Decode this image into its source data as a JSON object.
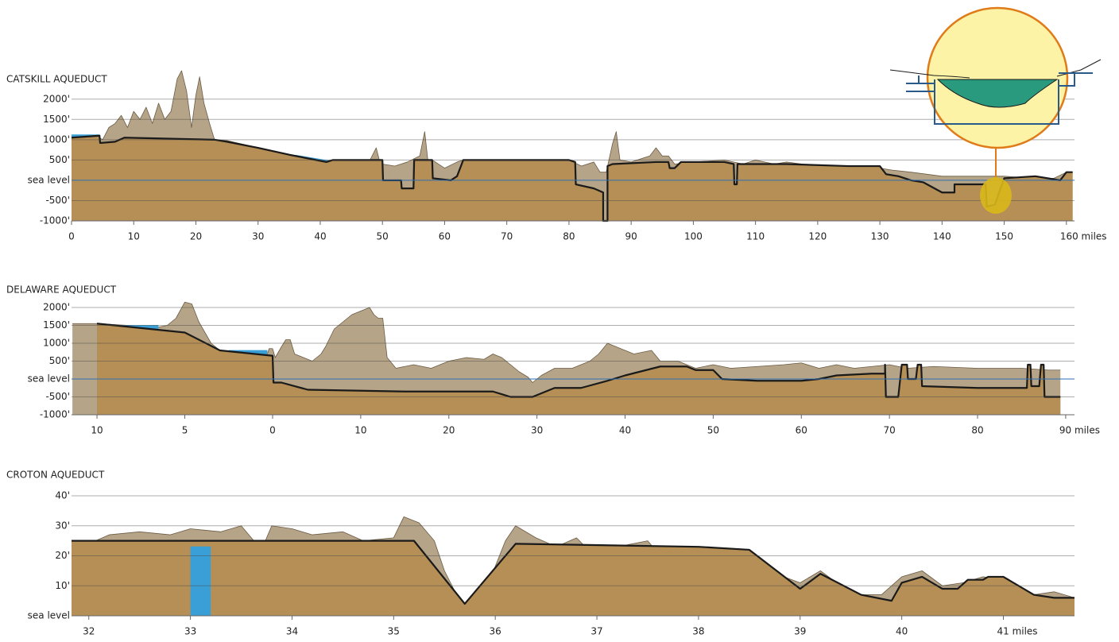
{
  "chart_data": [
    {
      "type": "area",
      "title": "CATSKILL AQUEDUCT",
      "xlim": [
        0,
        161.3
      ],
      "ylim": [
        -1000,
        2700
      ],
      "yticks": [
        {
          "value": 2000,
          "label": "2000'"
        },
        {
          "value": 1500,
          "label": "1500'"
        },
        {
          "value": 1000,
          "label": "1000'"
        },
        {
          "value": 500,
          "label": "500'"
        },
        {
          "value": 0,
          "label": "sea level"
        },
        {
          "value": -500,
          "label": "-500'"
        },
        {
          "value": -1000,
          "label": "-1000'"
        }
      ],
      "xticks": [
        0,
        10,
        20,
        30,
        40,
        50,
        60,
        70,
        80,
        90,
        100,
        110,
        120,
        130,
        140,
        150,
        {
          "value": 160,
          "label": "160 miles"
        }
      ],
      "grid": true,
      "series": [
        {
          "color": "#6b5b45",
          "fill": "#b5a487",
          "x": [
            0,
            4,
            5,
            6,
            7,
            8,
            9,
            10,
            11,
            12,
            13,
            14,
            15,
            16,
            17,
            17.7,
            18.5,
            19.3,
            20,
            20.6,
            21.3,
            22.2,
            23,
            25,
            30,
            35,
            40,
            42,
            45,
            48,
            49,
            49.5,
            50,
            52,
            54,
            56,
            56.8,
            57.3,
            58,
            60,
            62,
            63,
            70,
            78,
            80,
            82,
            84,
            85,
            86,
            87,
            87.6,
            88.2,
            90,
            93,
            94,
            95,
            96,
            97,
            100,
            105,
            108,
            110,
            113,
            115,
            120,
            125,
            130,
            132,
            135,
            140,
            145,
            150,
            155,
            158,
            160,
            161
          ],
          "values": [
            1050,
            1100,
            1000,
            1300,
            1400,
            1600,
            1300,
            1700,
            1500,
            1800,
            1400,
            1900,
            1500,
            1700,
            2500,
            2700,
            2200,
            1300,
            2100,
            2550,
            1900,
            1400,
            1000,
            980,
            800,
            600,
            450,
            500,
            500,
            500,
            800,
            500,
            400,
            350,
            450,
            600,
            1200,
            500,
            500,
            300,
            450,
            500,
            500,
            500,
            500,
            350,
            450,
            200,
            200,
            900,
            1200,
            500,
            450,
            600,
            800,
            600,
            600,
            400,
            450,
            500,
            400,
            500,
            400,
            450,
            350,
            350,
            300,
            250,
            200,
            100,
            100,
            100,
            50,
            50,
            200,
            200
          ]
        },
        {
          "color": "#3a9fd6",
          "fill": "#3a9fd6",
          "x": [
            0,
            4.5,
            null,
            36,
            41.5
          ],
          "values": [
            1120,
            1120,
            null,
            620,
            480
          ]
        },
        {
          "color": "#1a1a1a",
          "fill": "#b58f55",
          "x": [
            0,
            4.5,
            4.6,
            7,
            8.5,
            23,
            25,
            30,
            35,
            41,
            42,
            50,
            50.1,
            53,
            53.1,
            55,
            55.1,
            58,
            58.1,
            61,
            62,
            63,
            80,
            81,
            81.1,
            84,
            85.5,
            85.5,
            86.2,
            86.2,
            87,
            94,
            96,
            96.2,
            97,
            98,
            105,
            106.5,
            106.6,
            107,
            107.1,
            115,
            125,
            130,
            131,
            133,
            135,
            137,
            140,
            142,
            142,
            147,
            147.2,
            148.5,
            149.4,
            150,
            155,
            157,
            159,
            160,
            161
          ],
          "values": [
            1050,
            1100,
            920,
            950,
            1050,
            1000,
            950,
            800,
            630,
            450,
            500,
            500,
            0,
            0,
            -200,
            -200,
            500,
            500,
            50,
            0,
            100,
            500,
            500,
            450,
            -100,
            -200,
            -300,
            -1000,
            -1000,
            350,
            400,
            450,
            450,
            300,
            300,
            450,
            450,
            400,
            -100,
            -100,
            400,
            400,
            350,
            350,
            150,
            100,
            0,
            -50,
            -300,
            -300,
            -100,
            -100,
            -650,
            -600,
            -200,
            50,
            100,
            50,
            0,
            200,
            200
          ]
        }
      ]
    },
    {
      "type": "area",
      "title": "DELAWARE AQUEDUCT",
      "xlim": [
        -11.45,
        91
      ],
      "ylim": [
        -1000,
        2200
      ],
      "yticks": [
        {
          "value": 2000,
          "label": "2000'"
        },
        {
          "value": 1500,
          "label": "1500'"
        },
        {
          "value": 1000,
          "label": "1000'"
        },
        {
          "value": 500,
          "label": "500'"
        },
        {
          "value": 0,
          "label": "sea level"
        },
        {
          "value": -500,
          "label": "-500'"
        },
        {
          "value": -1000,
          "label": "-1000'"
        }
      ],
      "xticks": [
        {
          "value": -10,
          "label": "10"
        },
        {
          "value": -5,
          "label": "5"
        },
        0,
        10,
        20,
        30,
        40,
        50,
        60,
        70,
        80,
        {
          "value": 90,
          "label": "90 miles"
        }
      ],
      "grid": true,
      "series": [
        {
          "color": "#6b5b45",
          "fill": "#b5a487",
          "x": [
            -11.4,
            -10,
            -6.5,
            -6,
            -5.5,
            -5,
            -4.6,
            -4.2,
            -3.5,
            -3,
            -1,
            -0.3,
            -0.2,
            0,
            0.3,
            1,
            1.5,
            2,
            2.5,
            3.5,
            4.5,
            5.5,
            6,
            7,
            8,
            9,
            10,
            11,
            11.5,
            12,
            12.5,
            13,
            14,
            16,
            18,
            20,
            22,
            24,
            25,
            26,
            27,
            28,
            29,
            29.5,
            30.5,
            32,
            34,
            36,
            37,
            38,
            39,
            40,
            41,
            43,
            44,
            46,
            48,
            50,
            52,
            55,
            58,
            60,
            62,
            64,
            66,
            68,
            70,
            72,
            75,
            80,
            85,
            88,
            89.4
          ],
          "values": [
            1550,
            1550,
            1450,
            1500,
            1700,
            2150,
            2100,
            1600,
            1000,
            800,
            700,
            700,
            850,
            850,
            600,
            900,
            1100,
            1100,
            700,
            600,
            500,
            700,
            900,
            1400,
            1600,
            1800,
            1900,
            2000,
            1800,
            1700,
            1700,
            600,
            300,
            400,
            300,
            500,
            600,
            550,
            700,
            600,
            400,
            200,
            50,
            -100,
            100,
            300,
            300,
            500,
            700,
            1000,
            900,
            800,
            700,
            800,
            500,
            500,
            300,
            400,
            300,
            350,
            400,
            450,
            300,
            400,
            300,
            350,
            400,
            300,
            350,
            300,
            300,
            250,
            250
          ]
        },
        {
          "color": "#3a9fd6",
          "fill": "#3a9fd6",
          "x": [
            -10,
            -6.5,
            null,
            -2.5,
            -0.3
          ],
          "values": [
            1500,
            1500,
            null,
            800,
            800
          ]
        },
        {
          "color": "#1a1a1a",
          "fill": "#b58f55",
          "x": [
            -10,
            -5,
            -3,
            0,
            0.1,
            1,
            4,
            15,
            25,
            27,
            29.5,
            32,
            35,
            38,
            40,
            44,
            47,
            48,
            50,
            51,
            55,
            60,
            62,
            64,
            68,
            69.5,
            69.5,
            69.6,
            71,
            71.4,
            72,
            72.1,
            73,
            73.2,
            73.6,
            73.7,
            80,
            85.6,
            85.7,
            86,
            86.1,
            87,
            87.2,
            87.5,
            87.6,
            89.4
          ],
          "values": [
            1550,
            1300,
            800,
            650,
            -100,
            -100,
            -300,
            -350,
            -350,
            -500,
            -500,
            -250,
            -250,
            -50,
            100,
            350,
            350,
            250,
            250,
            0,
            -50,
            -50,
            0,
            100,
            150,
            150,
            400,
            -500,
            -500,
            400,
            400,
            0,
            0,
            400,
            400,
            -200,
            -250,
            -250,
            400,
            400,
            -200,
            -200,
            400,
            400,
            -500,
            -500
          ]
        }
      ]
    },
    {
      "type": "area",
      "title": "CROTON AQUEDUCT",
      "xlim": [
        31.83,
        41.7
      ],
      "ylim": [
        0,
        40
      ],
      "yticks": [
        {
          "value": 40,
          "label": "40'"
        },
        {
          "value": 30,
          "label": "30'"
        },
        {
          "value": 20,
          "label": "20'"
        },
        {
          "value": 10,
          "label": "10'"
        },
        {
          "value": 0,
          "label": "sea level"
        }
      ],
      "xticks": [
        32,
        33,
        34,
        35,
        36,
        37,
        38,
        39,
        40,
        {
          "value": 41,
          "label": "41 miles"
        }
      ],
      "grid": true,
      "series": [
        {
          "color": "#6b5b45",
          "fill": "#b5a487",
          "x": [
            31.83,
            32,
            32.2,
            32.5,
            32.8,
            33,
            33.3,
            33.5,
            33.7,
            33.8,
            34,
            34.2,
            34.5,
            34.7,
            35,
            35.1,
            35.25,
            35.4,
            35.5,
            35.65,
            35.75,
            35.9,
            36.1,
            36.2,
            36.4,
            36.6,
            36.8,
            37,
            37.2,
            37.5,
            37.6,
            37.8,
            38,
            38.3,
            38.6,
            39,
            39.2,
            39.4,
            39.6,
            39.8,
            40,
            40.2,
            40.4,
            40.6,
            40.8,
            41,
            41.3,
            41.5,
            41.7
          ],
          "values": [
            25,
            24,
            27,
            28,
            27,
            29,
            28,
            30,
            22,
            30,
            29,
            27,
            28,
            25,
            26,
            33,
            31,
            25,
            15,
            5,
            2,
            8,
            25,
            30,
            26,
            23,
            26,
            19,
            23,
            25,
            21,
            19,
            22,
            20,
            16,
            11,
            15,
            10,
            7,
            7,
            13,
            15,
            10,
            11,
            13,
            12,
            7,
            8,
            6
          ]
        },
        {
          "color": "#1a1a1a",
          "fill": "#b58f55",
          "x": [
            31.83,
            33.7,
            35.2,
            35.7,
            36.2,
            38,
            38.5,
            39,
            39.2,
            39.6,
            39.9,
            40,
            40.2,
            40.4,
            40.55,
            40.65,
            40.8,
            40.85,
            41,
            41.3,
            41.5,
            41.7
          ],
          "values": [
            25,
            25,
            25,
            4,
            24,
            23,
            22,
            9,
            14,
            7,
            5,
            11,
            13,
            9,
            9,
            12,
            12,
            13,
            13,
            7,
            6,
            6
          ]
        },
        {
          "color": "#3a9fd6",
          "fill": "#3a9fd6",
          "x": [
            33,
            33.2
          ],
          "values": [
            23,
            23
          ]
        }
      ]
    }
  ]
}
